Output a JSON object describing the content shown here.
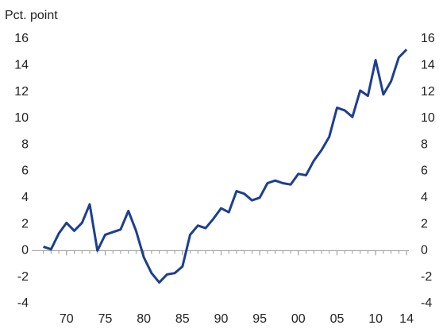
{
  "chart_data": {
    "type": "line",
    "y_label": "Pct. point",
    "x": [
      1967,
      1968,
      1969,
      1970,
      1971,
      1972,
      1973,
      1974,
      1975,
      1976,
      1977,
      1978,
      1979,
      1980,
      1981,
      1982,
      1983,
      1984,
      1985,
      1986,
      1987,
      1988,
      1989,
      1990,
      1991,
      1992,
      1993,
      1994,
      1995,
      1996,
      1997,
      1998,
      1999,
      2000,
      2001,
      2002,
      2003,
      2004,
      2005,
      2006,
      2007,
      2008,
      2009,
      2010,
      2011,
      2012,
      2013,
      2014
    ],
    "series": [
      {
        "name": null,
        "color": "#1d3f8f",
        "values": [
          0.3,
          0.1,
          1.3,
          2.1,
          1.5,
          2.1,
          3.5,
          0.0,
          1.2,
          1.4,
          1.6,
          3.0,
          1.5,
          -0.5,
          -1.7,
          -2.4,
          -1.8,
          -1.7,
          -1.2,
          1.2,
          1.9,
          1.7,
          2.4,
          3.2,
          2.9,
          4.5,
          4.3,
          3.8,
          4.0,
          5.1,
          5.3,
          5.1,
          5.0,
          5.8,
          5.7,
          6.8,
          7.6,
          8.6,
          10.8,
          10.6,
          10.1,
          12.1,
          11.7,
          14.4,
          11.8,
          12.8,
          14.6,
          15.2
        ]
      }
    ],
    "xlim": [
      1965.5,
      2014.3
    ],
    "xticks": [
      {
        "value": 1970,
        "label": "70"
      },
      {
        "value": 1975,
        "label": "75"
      },
      {
        "value": 1980,
        "label": "80"
      },
      {
        "value": 1985,
        "label": "85"
      },
      {
        "value": 1990,
        "label": "90"
      },
      {
        "value": 1995,
        "label": "95"
      },
      {
        "value": 2000,
        "label": "00"
      },
      {
        "value": 2005,
        "label": "05"
      },
      {
        "value": 2010,
        "label": "10"
      },
      {
        "value": 2014,
        "label": "14"
      }
    ],
    "ylim": [
      -4,
      16
    ],
    "yticks": [
      -4,
      -2,
      0,
      2,
      4,
      6,
      8,
      10,
      12,
      14,
      16
    ],
    "y2lim": [
      -4,
      16
    ],
    "y2ticks": [
      -4,
      -2,
      0,
      2,
      4,
      6,
      8,
      10,
      12,
      14,
      16
    ]
  }
}
